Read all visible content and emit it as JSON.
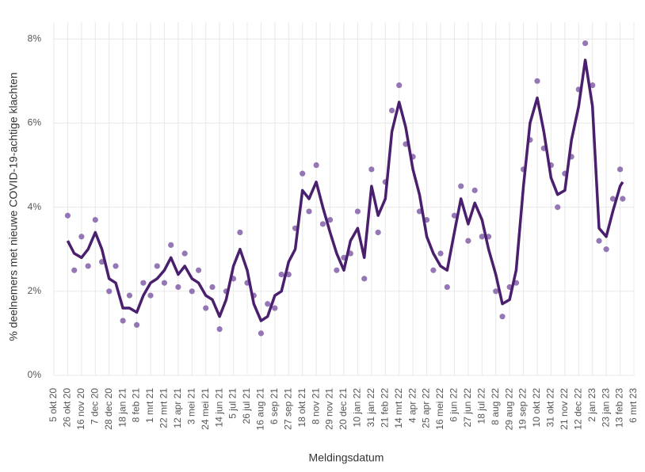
{
  "chart_data": {
    "type": "line",
    "y_label": "% deelnemers met nieuwe COVID-19-achtige klachten",
    "x_label": "Meldingsdatum",
    "x": [
      "2020-10-26",
      "2020-11-05",
      "2020-11-16",
      "2020-11-26",
      "2020-12-07",
      "2020-12-17",
      "2020-12-28",
      "2021-01-07",
      "2021-01-18",
      "2021-01-28",
      "2021-02-08",
      "2021-02-18",
      "2021-03-01",
      "2021-03-11",
      "2021-03-22",
      "2021-04-01",
      "2021-04-12",
      "2021-04-22",
      "2021-05-03",
      "2021-05-13",
      "2021-05-24",
      "2021-06-03",
      "2021-06-14",
      "2021-06-24",
      "2021-07-05",
      "2021-07-15",
      "2021-07-26",
      "2021-08-05",
      "2021-08-16",
      "2021-08-26",
      "2021-09-06",
      "2021-09-16",
      "2021-09-27",
      "2021-10-07",
      "2021-10-18",
      "2021-10-28",
      "2021-11-08",
      "2021-11-18",
      "2021-11-29",
      "2021-12-09",
      "2021-12-20",
      "2021-12-30",
      "2022-01-10",
      "2022-01-20",
      "2022-01-31",
      "2022-02-10",
      "2022-02-21",
      "2022-03-03",
      "2022-03-14",
      "2022-03-24",
      "2022-04-04",
      "2022-04-14",
      "2022-04-25",
      "2022-05-05",
      "2022-05-16",
      "2022-05-26",
      "2022-06-06",
      "2022-06-16",
      "2022-06-27",
      "2022-07-07",
      "2022-07-18",
      "2022-07-28",
      "2022-08-08",
      "2022-08-18",
      "2022-08-29",
      "2022-09-08",
      "2022-09-19",
      "2022-09-29",
      "2022-10-10",
      "2022-10-20",
      "2022-10-31",
      "2022-11-10",
      "2022-11-21",
      "2022-12-01",
      "2022-12-12",
      "2022-12-22",
      "2023-01-02",
      "2023-01-12",
      "2023-01-23",
      "2023-02-02",
      "2023-02-13",
      "2023-02-17"
    ],
    "series": [
      {
        "color": "#4a1f6e",
        "values": [
          3.2,
          2.9,
          2.8,
          3.0,
          3.4,
          3.0,
          2.3,
          2.2,
          1.6,
          1.6,
          1.5,
          1.9,
          2.2,
          2.3,
          2.5,
          2.8,
          2.4,
          2.6,
          2.3,
          2.2,
          1.9,
          1.8,
          1.4,
          1.8,
          2.6,
          3.0,
          2.5,
          1.7,
          1.3,
          1.4,
          1.9,
          2.0,
          2.7,
          3.0,
          4.4,
          4.2,
          4.6,
          4.0,
          3.4,
          2.9,
          2.5,
          3.2,
          3.5,
          2.8,
          4.5,
          3.8,
          4.2,
          5.8,
          6.5,
          5.9,
          4.9,
          4.3,
          3.3,
          2.9,
          2.6,
          2.5,
          3.4,
          4.2,
          3.6,
          4.1,
          3.7,
          3.0,
          2.4,
          1.7,
          1.8,
          2.5,
          4.5,
          6.0,
          6.6,
          5.8,
          4.7,
          4.3,
          4.4,
          5.6,
          6.4,
          7.5,
          6.4,
          3.5,
          3.3,
          3.9,
          4.5,
          4.6
        ]
      },
      {
        "color": "#7a55a3",
        "values": [
          3.8,
          2.5,
          3.3,
          2.6,
          3.7,
          2.7,
          2.0,
          2.6,
          1.3,
          1.9,
          1.2,
          2.2,
          1.9,
          2.6,
          2.2,
          3.1,
          2.1,
          2.9,
          2.0,
          2.5,
          1.6,
          2.1,
          1.1,
          2.0,
          2.3,
          3.4,
          2.2,
          1.9,
          1.0,
          1.7,
          1.6,
          2.4,
          2.4,
          3.5,
          4.8,
          3.9,
          5.0,
          3.6,
          3.7,
          2.5,
          2.8,
          2.9,
          3.9,
          2.3,
          4.9,
          3.4,
          4.6,
          6.3,
          6.9,
          5.5,
          5.2,
          3.9,
          3.7,
          2.5,
          2.9,
          2.1,
          3.8,
          4.5,
          3.2,
          4.4,
          3.3,
          3.3,
          2.0,
          1.4,
          2.1,
          2.2,
          4.9,
          5.6,
          7.0,
          5.4,
          5.0,
          4.0,
          4.8,
          5.2,
          6.8,
          7.9,
          6.9,
          3.2,
          3.0,
          4.2,
          4.9,
          4.2
        ]
      }
    ],
    "xlim": [
      "2020-10-05",
      "2023-03-06"
    ],
    "xticks": [
      {
        "value": "2020-10-05",
        "label": "5 okt 20"
      },
      {
        "value": "2020-10-26",
        "label": "26 okt 20"
      },
      {
        "value": "2020-11-16",
        "label": "16 nov 20"
      },
      {
        "value": "2020-12-07",
        "label": "7 dec 20"
      },
      {
        "value": "2020-12-28",
        "label": "28 dec 20"
      },
      {
        "value": "2021-01-18",
        "label": "18 jan 21"
      },
      {
        "value": "2021-02-08",
        "label": "8 feb 21"
      },
      {
        "value": "2021-03-01",
        "label": "1 mrt 21"
      },
      {
        "value": "2021-03-22",
        "label": "22 mrt 21"
      },
      {
        "value": "2021-04-12",
        "label": "12 apr 21"
      },
      {
        "value": "2021-05-03",
        "label": "3 mei 21"
      },
      {
        "value": "2021-05-24",
        "label": "24 mei 21"
      },
      {
        "value": "2021-06-14",
        "label": "14 jun 21"
      },
      {
        "value": "2021-07-05",
        "label": "5 jul 21"
      },
      {
        "value": "2021-07-26",
        "label": "26 jul 21"
      },
      {
        "value": "2021-08-16",
        "label": "16 aug 21"
      },
      {
        "value": "2021-09-06",
        "label": "6 sep 21"
      },
      {
        "value": "2021-09-27",
        "label": "27 sep 21"
      },
      {
        "value": "2021-10-18",
        "label": "18 okt 21"
      },
      {
        "value": "2021-11-08",
        "label": "8 nov 21"
      },
      {
        "value": "2021-11-29",
        "label": "29 nov 21"
      },
      {
        "value": "2021-12-20",
        "label": "20 dec 21"
      },
      {
        "value": "2022-01-10",
        "label": "10 jan 22"
      },
      {
        "value": "2022-01-31",
        "label": "31 jan 22"
      },
      {
        "value": "2022-02-21",
        "label": "21 feb 22"
      },
      {
        "value": "2022-03-14",
        "label": "14 mrt 22"
      },
      {
        "value": "2022-04-04",
        "label": "4 apr 22"
      },
      {
        "value": "2022-04-25",
        "label": "25 apr 22"
      },
      {
        "value": "2022-05-16",
        "label": "16 mei 22"
      },
      {
        "value": "2022-06-06",
        "label": "6 jun 22"
      },
      {
        "value": "2022-06-27",
        "label": "27 jun 22"
      },
      {
        "value": "2022-07-18",
        "label": "18 jul 22"
      },
      {
        "value": "2022-08-08",
        "label": "8 aug 22"
      },
      {
        "value": "2022-08-29",
        "label": "29 aug 22"
      },
      {
        "value": "2022-09-19",
        "label": "19 sep 22"
      },
      {
        "value": "2022-10-10",
        "label": "10 okt 22"
      },
      {
        "value": "2022-10-31",
        "label": "31 okt 22"
      },
      {
        "value": "2022-11-21",
        "label": "21 nov 22"
      },
      {
        "value": "2022-12-12",
        "label": "12 dec 22"
      },
      {
        "value": "2023-01-02",
        "label": "2 jan 23"
      },
      {
        "value": "2023-01-23",
        "label": "23 jan 23"
      },
      {
        "value": "2023-02-13",
        "label": "13 feb 23"
      },
      {
        "value": "2023-03-06",
        "label": "6 mrt 23"
      }
    ],
    "ylim": [
      0,
      8.4
    ],
    "yticks": [
      {
        "value": 0,
        "label": "0%"
      },
      {
        "value": 2,
        "label": "2%"
      },
      {
        "value": 4,
        "label": "4%"
      },
      {
        "value": 6,
        "label": "6%"
      },
      {
        "value": 8,
        "label": "8%"
      }
    ],
    "grid": true
  }
}
